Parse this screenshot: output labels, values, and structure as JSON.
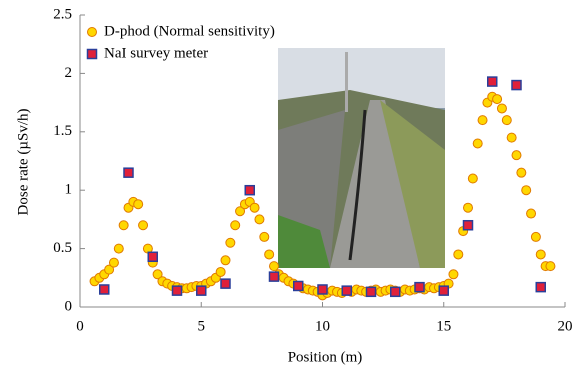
{
  "chart_data": {
    "type": "scatter",
    "xlabel": "Position (m)",
    "ylabel": "Dose rate (µSv/h)",
    "xlim": [
      0,
      20
    ],
    "xticks": [
      0,
      5,
      10,
      15,
      20
    ],
    "ylim": [
      0,
      2.5
    ],
    "yticks": [
      0,
      0.5,
      1,
      1.5,
      2,
      2.5
    ],
    "legend": "upper left",
    "series": [
      {
        "name": "D-phod (Normal sensitivity)",
        "marker": "circle",
        "color": "#ffd700",
        "edgecolor": "#e07a00",
        "x": [
          0.6,
          0.8,
          1.0,
          1.2,
          1.4,
          1.6,
          1.8,
          2.0,
          2.2,
          2.4,
          2.6,
          2.8,
          3.0,
          3.2,
          3.4,
          3.6,
          3.8,
          4.0,
          4.2,
          4.4,
          4.6,
          4.8,
          5.0,
          5.2,
          5.4,
          5.6,
          5.8,
          6.0,
          6.2,
          6.4,
          6.6,
          6.8,
          7.0,
          7.2,
          7.4,
          7.6,
          7.8,
          8.0,
          8.2,
          8.4,
          8.6,
          8.8,
          9.0,
          9.2,
          9.4,
          9.6,
          9.8,
          10.0,
          10.2,
          10.4,
          10.6,
          10.8,
          11.0,
          11.2,
          11.4,
          11.6,
          11.8,
          12.0,
          12.2,
          12.4,
          12.6,
          12.8,
          13.0,
          13.2,
          13.4,
          13.6,
          13.8,
          14.0,
          14.2,
          14.4,
          14.6,
          14.8,
          15.0,
          15.2,
          15.4,
          15.6,
          15.8,
          16.0,
          16.2,
          16.4,
          16.6,
          16.8,
          17.0,
          17.2,
          17.4,
          17.6,
          17.8,
          18.0,
          18.2,
          18.4,
          18.6,
          18.8,
          19.0,
          19.2,
          19.4
        ],
        "values": [
          0.22,
          0.25,
          0.28,
          0.32,
          0.38,
          0.5,
          0.7,
          0.85,
          0.9,
          0.88,
          0.7,
          0.5,
          0.38,
          0.28,
          0.22,
          0.2,
          0.18,
          0.17,
          0.16,
          0.16,
          0.17,
          0.18,
          0.18,
          0.2,
          0.22,
          0.25,
          0.3,
          0.4,
          0.55,
          0.7,
          0.82,
          0.88,
          0.9,
          0.85,
          0.75,
          0.6,
          0.45,
          0.35,
          0.28,
          0.25,
          0.22,
          0.2,
          0.18,
          0.16,
          0.15,
          0.14,
          0.13,
          0.1,
          0.12,
          0.14,
          0.13,
          0.12,
          0.14,
          0.13,
          0.15,
          0.14,
          0.13,
          0.14,
          0.15,
          0.13,
          0.14,
          0.15,
          0.14,
          0.13,
          0.15,
          0.14,
          0.15,
          0.16,
          0.15,
          0.17,
          0.16,
          0.17,
          0.18,
          0.2,
          0.28,
          0.45,
          0.65,
          0.85,
          1.1,
          1.4,
          1.6,
          1.75,
          1.8,
          1.78,
          1.7,
          1.6,
          1.45,
          1.3,
          1.15,
          1.0,
          0.8,
          0.6,
          0.45,
          0.35,
          0.35
        ]
      },
      {
        "name": "NaI survey meter",
        "marker": "square",
        "color": "#e0203a",
        "edgecolor": "#2a3f9a",
        "x": [
          1,
          2,
          3,
          4,
          5,
          6,
          7,
          8,
          9,
          10,
          11,
          12,
          13,
          14,
          15,
          16,
          17,
          18,
          19
        ],
        "values": [
          0.15,
          1.15,
          0.43,
          0.14,
          0.14,
          0.2,
          1.0,
          0.26,
          0.18,
          0.15,
          0.14,
          0.13,
          0.13,
          0.17,
          0.14,
          0.7,
          1.93,
          1.9,
          0.17
        ]
      }
    ]
  }
}
